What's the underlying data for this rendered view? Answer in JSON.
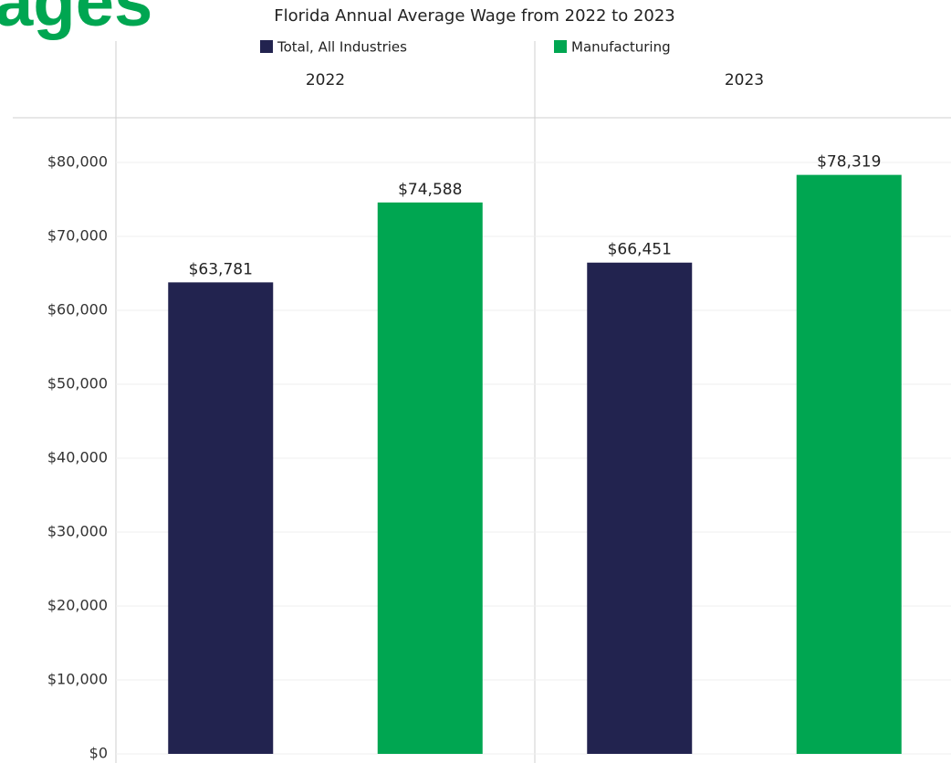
{
  "heading": "ages",
  "chart_data": {
    "type": "bar",
    "title": "Florida Annual Average Wage from 2022 to 2023",
    "categories": [
      "2022",
      "2023"
    ],
    "series": [
      {
        "name": "Total, All Industries",
        "color": "#22234f",
        "values": [
          63781,
          66451
        ],
        "value_labels": [
          "$63,781",
          "$66,451"
        ]
      },
      {
        "name": "Manufacturing",
        "color": "#00a651",
        "values": [
          74588,
          78319
        ],
        "value_labels": [
          "$74,588",
          "$78,319"
        ]
      }
    ],
    "ylim": [
      0,
      86000
    ],
    "yticks": [
      {
        "value": 0,
        "label": "$0"
      },
      {
        "value": 10000,
        "label": "$10,000"
      },
      {
        "value": 20000,
        "label": "$20,000"
      },
      {
        "value": 30000,
        "label": "$30,000"
      },
      {
        "value": 40000,
        "label": "$40,000"
      },
      {
        "value": 50000,
        "label": "$50,000"
      },
      {
        "value": 60000,
        "label": "$60,000"
      },
      {
        "value": 70000,
        "label": "$70,000"
      },
      {
        "value": 80000,
        "label": "$80,000"
      }
    ],
    "grid": true
  }
}
